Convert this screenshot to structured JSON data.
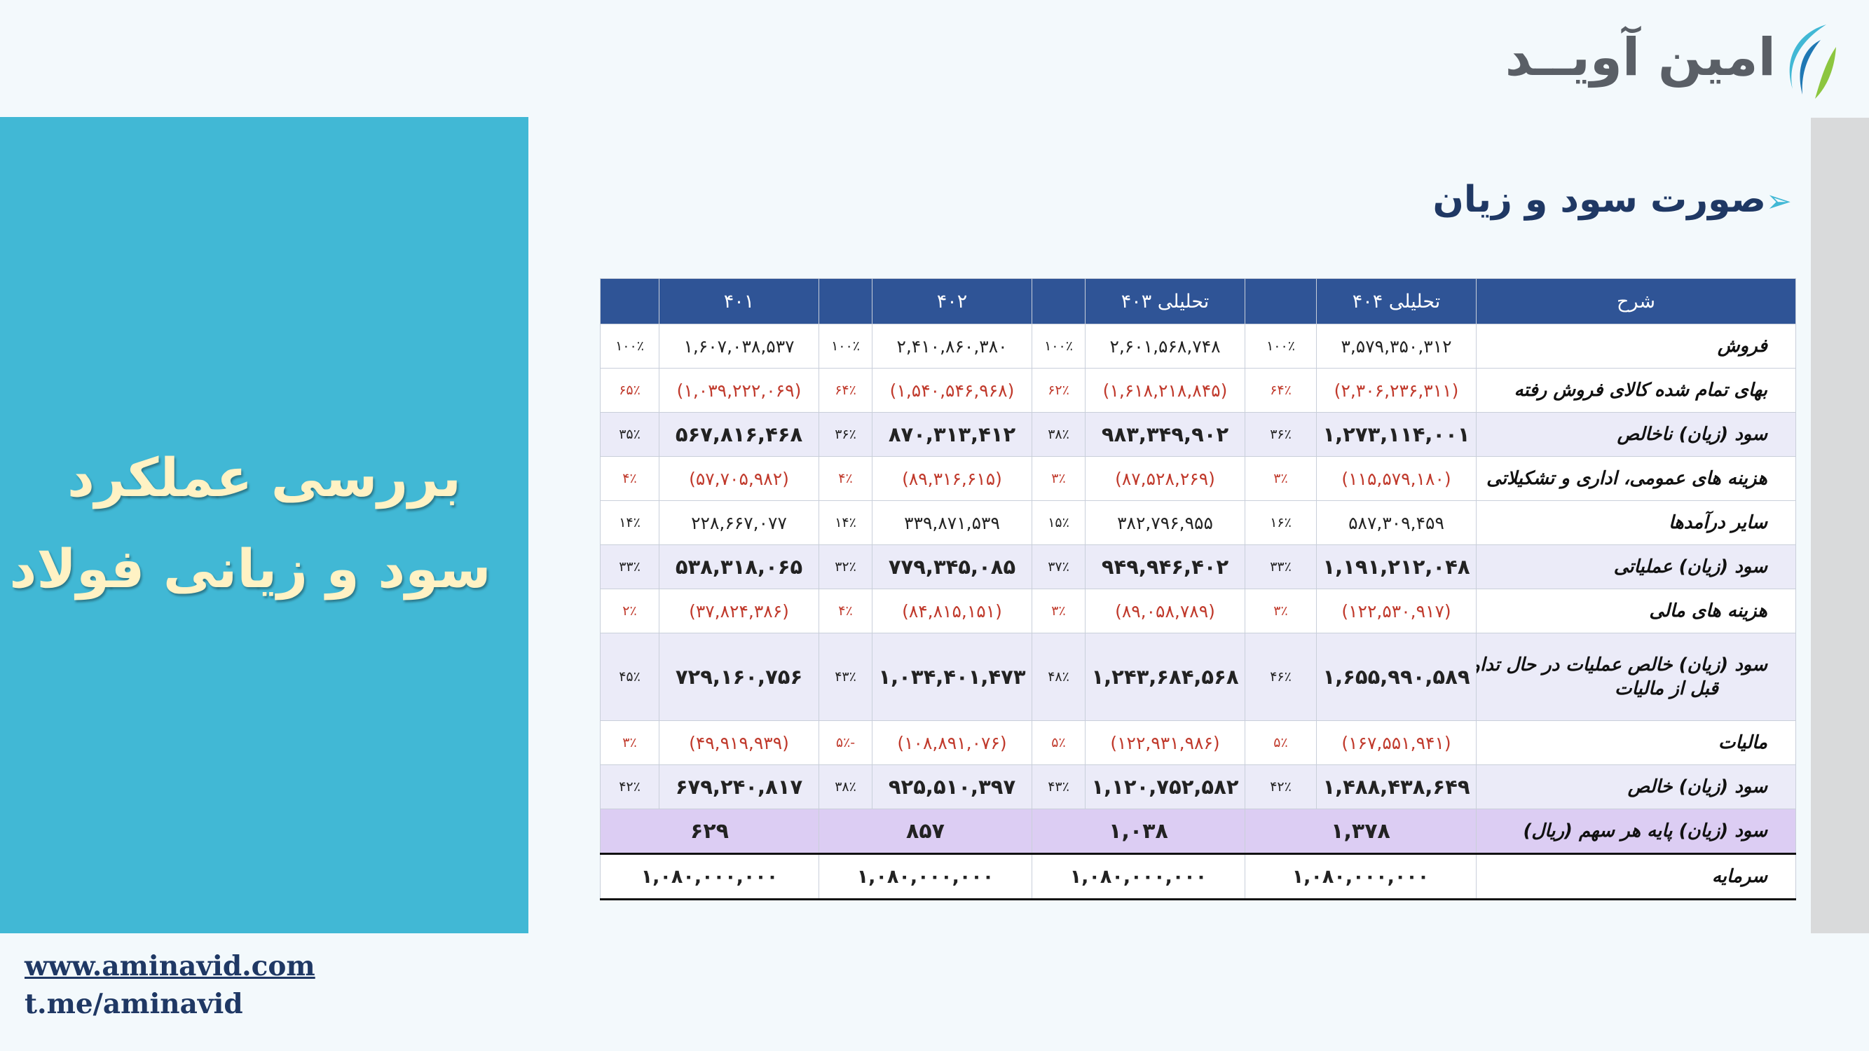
{
  "brand": {
    "name": "امین آویــد"
  },
  "panel": {
    "line1": "بررسی عملکرد",
    "line2": "سود و زیانی فولاد"
  },
  "links": {
    "website": "www.aminavid.com",
    "telegram": "t.me/aminavid"
  },
  "section": {
    "title": "صورت سود و زیان"
  },
  "colors": {
    "header": "#2f5496",
    "panel": "#41b8d5",
    "negative": "#c0392b",
    "eps_row": "#dccdf3",
    "highlight_row": "#ebebf8"
  },
  "table": {
    "headers": {
      "desc": "شرح",
      "c404": "تحلیلی ۴۰۴",
      "c403": "تحلیلی ۴۰۳",
      "c402": "۴۰۲",
      "c401": "۴۰۱"
    },
    "rows": [
      {
        "desc": "فروش",
        "v404": "۳,۵۷۹,۳۵۰,۳۱۲",
        "p404": "۱۰۰٪",
        "v403": "۲,۶۰۱,۵۶۸,۷۴۸",
        "p403": "۱۰۰٪",
        "v402": "۲,۴۱۰,۸۶۰,۳۸۰",
        "p402": "۱۰۰٪",
        "v401": "۱,۶۰۷,۰۳۸,۵۳۷",
        "p401": "۱۰۰٪"
      },
      {
        "desc": "بهای تمام شده کالای فروش رفته",
        "v404": "(۲,۳۰۶,۲۳۶,۳۱۱)",
        "p404": "۶۴٪",
        "v403": "(۱,۶۱۸,۲۱۸,۸۴۵)",
        "p403": "۶۲٪",
        "v402": "(۱,۵۴۰,۵۴۶,۹۶۸)",
        "p402": "۶۴٪",
        "v401": "(۱,۰۳۹,۲۲۲,۰۶۹)",
        "p401": "۶۵٪"
      },
      {
        "desc": "سود (زیان) ناخالص",
        "v404": "۱,۲۷۳,۱۱۴,۰۰۱",
        "p404": "۳۶٪",
        "v403": "۹۸۳,۳۴۹,۹۰۲",
        "p403": "۳۸٪",
        "v402": "۸۷۰,۳۱۳,۴۱۲",
        "p402": "۳۶٪",
        "v401": "۵۶۷,۸۱۶,۴۶۸",
        "p401": "۳۵٪"
      },
      {
        "desc": "هزینه های عمومی، اداری و تشکیلاتی",
        "v404": "(۱۱۵,۵۷۹,۱۸۰)",
        "p404": "۳٪",
        "v403": "(۸۷,۵۲۸,۲۶۹)",
        "p403": "۳٪",
        "v402": "(۸۹,۳۱۶,۶۱۵)",
        "p402": "۴٪",
        "v401": "(۵۷,۷۰۵,۹۸۲)",
        "p401": "۴٪"
      },
      {
        "desc": "سایر درآمدها",
        "v404": "۵۸۷,۳۰۹,۴۵۹",
        "p404": "۱۶٪",
        "v403": "۳۸۲,۷۹۶,۹۵۵",
        "p403": "۱۵٪",
        "v402": "۳۳۹,۸۷۱,۵۳۹",
        "p402": "۱۴٪",
        "v401": "۲۲۸,۶۶۷,۰۷۷",
        "p401": "۱۴٪"
      },
      {
        "desc": "سود (زیان) عملیاتی",
        "v404": "۱,۱۹۱,۲۱۲,۰۴۸",
        "p404": "۳۳٪",
        "v403": "۹۴۹,۹۴۶,۴۰۲",
        "p403": "۳۷٪",
        "v402": "۷۷۹,۳۴۵,۰۸۵",
        "p402": "۳۲٪",
        "v401": "۵۳۸,۳۱۸,۰۶۵",
        "p401": "۳۳٪"
      },
      {
        "desc": "هزینه های مالی",
        "v404": "(۱۲۲,۵۳۰,۹۱۷)",
        "p404": "۳٪",
        "v403": "(۸۹,۰۵۸,۷۸۹)",
        "p403": "۳٪",
        "v402": "(۸۴,۸۱۵,۱۵۱)",
        "p402": "۴٪",
        "v401": "(۳۷,۸۲۴,۳۸۶)",
        "p401": "۲٪"
      },
      {
        "desc": "سود (زیان) خالص عملیات در حال تداوم",
        "desc2": "قبل از مالیات",
        "v404": "۱,۶۵۵,۹۹۰,۵۸۹",
        "p404": "۴۶٪",
        "v403": "۱,۲۴۳,۶۸۴,۵۶۸",
        "p403": "۴۸٪",
        "v402": "۱,۰۳۴,۴۰۱,۴۷۳",
        "p402": "۴۳٪",
        "v401": "۷۲۹,۱۶۰,۷۵۶",
        "p401": "۴۵٪"
      },
      {
        "desc": "مالیات",
        "v404": "(۱۶۷,۵۵۱,۹۴۱)",
        "p404": "۵٪",
        "v403": "(۱۲۲,۹۳۱,۹۸۶)",
        "p403": "۵٪",
        "v402": "(۱۰۸,۸۹۱,۰۷۶)",
        "p402": "-۵٪",
        "v401": "(۴۹,۹۱۹,۹۳۹)",
        "p401": "۳٪"
      },
      {
        "desc": "سود (زیان) خالص",
        "v404": "۱,۴۸۸,۴۳۸,۶۴۹",
        "p404": "۴۲٪",
        "v403": "۱,۱۲۰,۷۵۲,۵۸۲",
        "p403": "۴۳٪",
        "v402": "۹۲۵,۵۱۰,۳۹۷",
        "p402": "۳۸٪",
        "v401": "۶۷۹,۲۴۰,۸۱۷",
        "p401": "۴۲٪"
      }
    ],
    "eps": {
      "desc": "سود (زیان)  پایه هر سهم (ریال)",
      "v404": "۱,۳۷۸",
      "v403": "۱,۰۳۸",
      "v402": "۸۵۷",
      "v401": "۶۲۹"
    },
    "capital": {
      "desc": "سرمایه",
      "v404": "۱,۰۸۰,۰۰۰,۰۰۰",
      "v403": "۱,۰۸۰,۰۰۰,۰۰۰",
      "v402": "۱,۰۸۰,۰۰۰,۰۰۰",
      "v401": "۱,۰۸۰,۰۰۰,۰۰۰"
    }
  }
}
